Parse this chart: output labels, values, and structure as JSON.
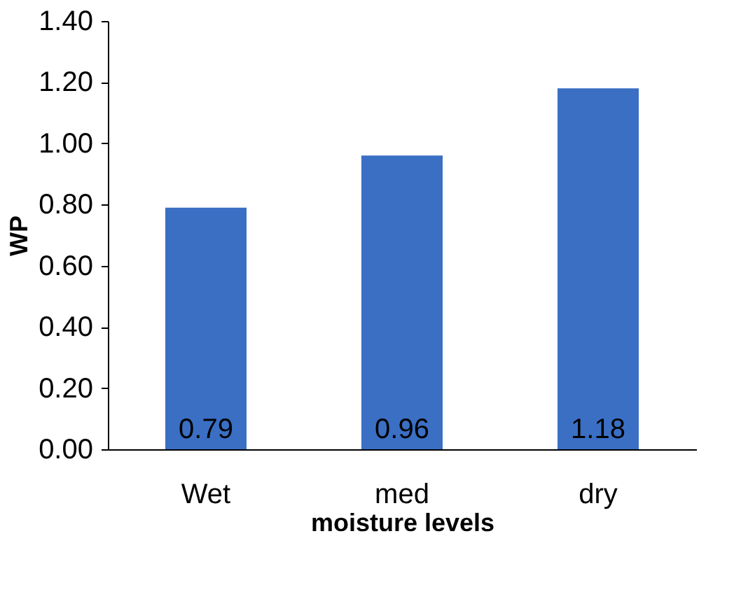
{
  "chart_data": {
    "type": "bar",
    "xlabel": "moisture levels",
    "ylabel": "WP",
    "categories": [
      "Wet",
      "med",
      "dry"
    ],
    "values": [
      0.79,
      0.96,
      1.18
    ],
    "color": "#3a6fc4",
    "ylim": [
      0,
      1.4
    ],
    "yticks": [
      {
        "value": 0,
        "label": "0.00"
      },
      {
        "value": 0.2,
        "label": "0.20"
      },
      {
        "value": 0.4,
        "label": "0.40"
      },
      {
        "value": 0.6,
        "label": "0.60"
      },
      {
        "value": 0.8,
        "label": "0.80"
      },
      {
        "value": 1.0,
        "label": "1.00"
      },
      {
        "value": 1.2,
        "label": "1.20"
      },
      {
        "value": 1.4,
        "label": "1.40"
      }
    ],
    "grid": false,
    "data_labels": true
  }
}
